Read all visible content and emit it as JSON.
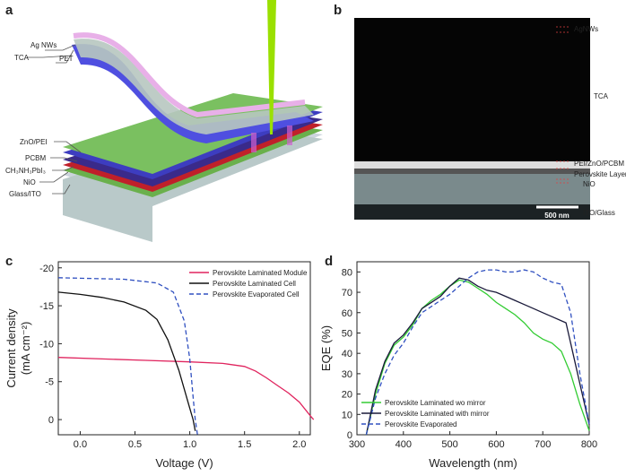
{
  "panels": {
    "a": {
      "letter": "a",
      "labels": [
        "PET",
        "Ag NWs",
        "TCA",
        "ZnO/PEI",
        "PCBM",
        "CH₃NH₃PbI₃",
        "NiO",
        "Glass/ITO"
      ]
    },
    "b": {
      "letter": "b",
      "labels": [
        "AgNWs",
        "TCA",
        "PEI/ZnO/PCBM",
        "Perovskite Layer",
        "NiO",
        "ITO/Glass"
      ],
      "scale_bar": "500 nm"
    },
    "c": {
      "letter": "c"
    },
    "d": {
      "letter": "d"
    }
  },
  "chart_data": [
    {
      "type": "line",
      "xlabel": "Voltage (V)",
      "ylabel": [
        "Current density",
        "(mA cm⁻²)"
      ],
      "xlim": [
        -0.2,
        2.1
      ],
      "ylim": [
        2,
        -20.8
      ],
      "xticks": [
        {
          "value": 0,
          "label": "0.0"
        },
        {
          "value": 0.5,
          "label": "0.5"
        },
        {
          "value": 1,
          "label": "1.0"
        },
        {
          "value": 1.5,
          "label": "1.5"
        },
        {
          "value": 2,
          "label": "2.0"
        }
      ],
      "yticks": [
        -20,
        -15,
        -10,
        -5,
        0
      ],
      "legend": "upper right",
      "series": [
        {
          "name": "Perovskite Laminated Module",
          "color": "#e0245e",
          "style": "solid",
          "x": [
            -0.2,
            0.2,
            0.6,
            1.0,
            1.3,
            1.5,
            1.6,
            1.7,
            1.8,
            1.9,
            2.0,
            2.1,
            2.13
          ],
          "values": [
            -8.2,
            -8.0,
            -7.8,
            -7.6,
            -7.4,
            -7.0,
            -6.4,
            -5.5,
            -4.5,
            -3.5,
            -2.3,
            -0.5,
            0
          ]
        },
        {
          "name": "Perovskite Laminated Cell",
          "color": "#111111",
          "style": "solid",
          "x": [
            -0.2,
            0.0,
            0.2,
            0.4,
            0.6,
            0.7,
            0.8,
            0.9,
            0.95,
            1.0,
            1.03,
            1.05
          ],
          "values": [
            -16.8,
            -16.5,
            -16.1,
            -15.5,
            -14.4,
            -13.2,
            -10.5,
            -6.5,
            -4,
            -1.5,
            0,
            1.5
          ]
        },
        {
          "name": "Perovskite Evaporated Cell",
          "color": "#3050c0",
          "style": "dashed",
          "x": [
            -0.2,
            0.4,
            0.7,
            0.85,
            0.95,
            1.0,
            1.03,
            1.05,
            1.07
          ],
          "values": [
            -18.7,
            -18.5,
            -18.0,
            -16.8,
            -13,
            -8,
            -3,
            0,
            2
          ]
        }
      ]
    },
    {
      "type": "line",
      "xlabel": "Wavelength (nm)",
      "ylabel": [
        "EQE (%)"
      ],
      "xlim": [
        300,
        800
      ],
      "ylim": [
        0,
        85
      ],
      "xticks": [
        300,
        400,
        500,
        600,
        700,
        800
      ],
      "yticks": [
        0,
        10,
        20,
        30,
        40,
        50,
        60,
        70,
        80
      ],
      "legend": "lower left",
      "series": [
        {
          "name": "Perovskite Laminated wo mirror",
          "color": "#33cc33",
          "style": "solid",
          "x": [
            320,
            340,
            360,
            380,
            400,
            420,
            440,
            460,
            480,
            500,
            520,
            540,
            560,
            580,
            600,
            620,
            640,
            660,
            680,
            700,
            720,
            740,
            760,
            780,
            800
          ],
          "values": [
            0,
            20,
            35,
            44,
            48,
            54,
            62,
            66,
            69,
            73,
            76,
            75,
            72,
            69,
            65,
            62,
            59,
            55,
            50,
            47,
            45,
            41,
            30,
            15,
            2
          ]
        },
        {
          "name": "Perovskite Laminated with mirror",
          "color": "#1a1a3a",
          "style": "solid",
          "x": [
            320,
            340,
            360,
            380,
            400,
            420,
            440,
            460,
            480,
            500,
            520,
            540,
            560,
            580,
            600,
            620,
            640,
            660,
            680,
            700,
            720,
            750,
            760,
            780,
            800
          ],
          "values": [
            0,
            22,
            36,
            45,
            49,
            55,
            62,
            65,
            68,
            73,
            77,
            76,
            73,
            71,
            70,
            68,
            66,
            64,
            62,
            60,
            58,
            55,
            45,
            25,
            5
          ]
        },
        {
          "name": "Perovskite Evaporated",
          "color": "#3050c0",
          "style": "dashed",
          "x": [
            320,
            340,
            360,
            380,
            400,
            420,
            440,
            460,
            480,
            500,
            520,
            540,
            560,
            580,
            600,
            620,
            640,
            660,
            680,
            700,
            720,
            740,
            760,
            780,
            800
          ],
          "values": [
            0,
            18,
            30,
            39,
            45,
            53,
            60,
            63,
            66,
            69,
            73,
            77,
            80,
            81,
            81,
            80,
            80,
            81,
            80,
            77,
            75,
            74,
            60,
            30,
            5
          ]
        }
      ]
    }
  ]
}
